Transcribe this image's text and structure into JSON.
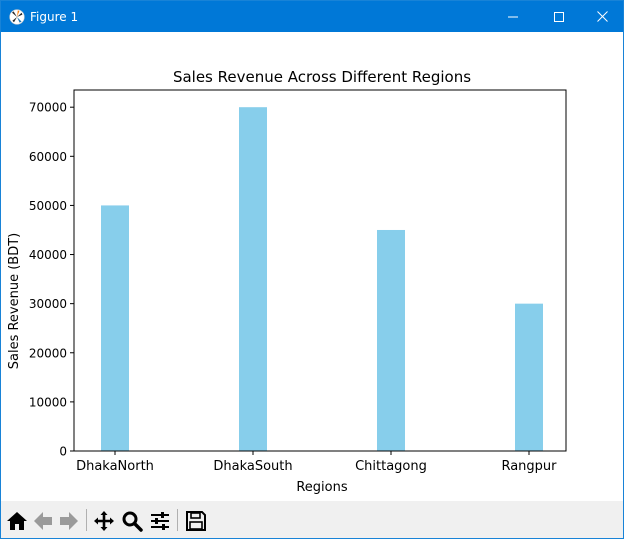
{
  "window": {
    "title": "Figure 1",
    "titlebar_color": "#0078d7"
  },
  "toolbar": {
    "tools": [
      {
        "icon": "home-icon",
        "label": "Home"
      },
      {
        "icon": "back-arrow-icon",
        "label": "Back"
      },
      {
        "icon": "forward-arrow-icon",
        "label": "Forward"
      },
      {
        "icon": "pan-icon",
        "label": "Pan"
      },
      {
        "icon": "zoom-icon",
        "label": "Zoom"
      },
      {
        "icon": "subplots-icon",
        "label": "Configure subplots"
      },
      {
        "icon": "save-icon",
        "label": "Save"
      }
    ]
  },
  "chart_data": {
    "type": "bar",
    "title": "Sales Revenue Across Different Regions",
    "xlabel": "Regions",
    "ylabel": "Sales Revenue (BDT)",
    "categories": [
      "DhakaNorth",
      "DhakaSouth",
      "Chittagong",
      "Rangpur"
    ],
    "values": [
      50000,
      70000,
      45000,
      30000
    ],
    "ylim": [
      0,
      73500
    ],
    "yticks": [
      0,
      10000,
      20000,
      30000,
      40000,
      50000,
      60000,
      70000
    ],
    "bar_color": "#87ceeb",
    "grid": false,
    "legend": "none"
  }
}
